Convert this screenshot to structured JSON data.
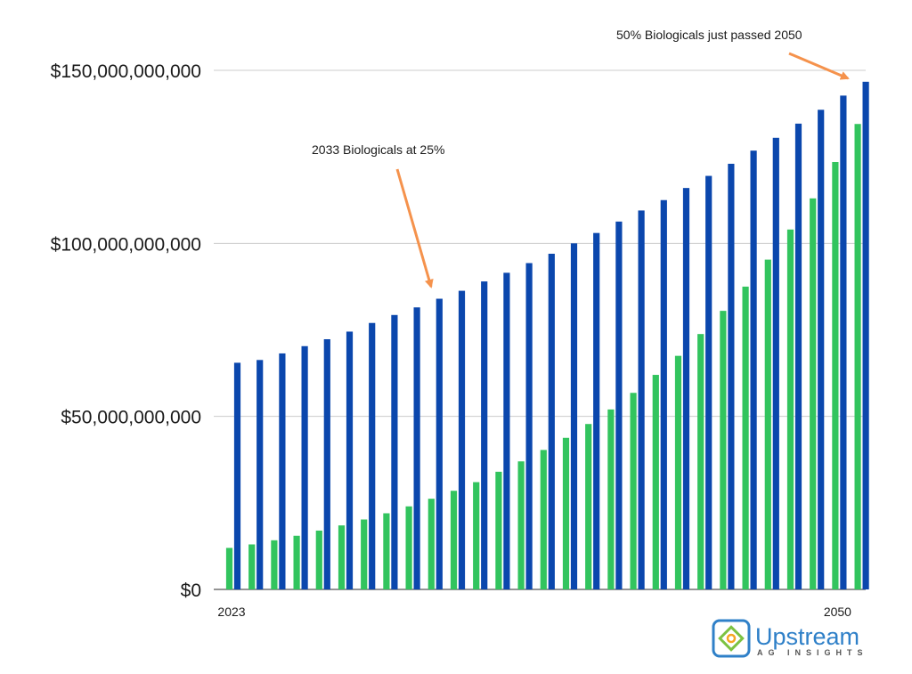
{
  "chart_data": {
    "type": "bar",
    "x_tick_labels": [
      {
        "index": 0,
        "label": "2023"
      },
      {
        "index": 27,
        "label": "2050"
      }
    ],
    "ylim": [
      0,
      150000000000
    ],
    "y_ticks": [
      {
        "value": 0,
        "label": "$0"
      },
      {
        "value": 50000000000,
        "label": "$50,000,000,000"
      },
      {
        "value": 100000000000,
        "label": "$100,000,000,000"
      },
      {
        "value": 150000000000,
        "label": "$150,000,000,000"
      }
    ],
    "grid": true,
    "series": [
      {
        "color": "#32c45e",
        "values": [
          12000000000,
          13000000000,
          14200000000,
          15500000000,
          17000000000,
          18500000000,
          20200000000,
          22000000000,
          24000000000,
          26200000000,
          28500000000,
          31000000000,
          34000000000,
          37000000000,
          40300000000,
          43800000000,
          47800000000,
          52000000000,
          56800000000,
          62000000000,
          67500000000,
          73800000000,
          80500000000,
          87500000000,
          95300000000,
          104000000000,
          113000000000,
          123500000000,
          134500000000
        ]
      },
      {
        "color": "#0b47ad",
        "values": [
          65500000000,
          66300000000,
          68200000000,
          70300000000,
          72300000000,
          74500000000,
          77000000000,
          79300000000,
          81500000000,
          84000000000,
          86300000000,
          89000000000,
          91500000000,
          94300000000,
          97000000000,
          100000000000,
          103000000000,
          106300000000,
          109500000000,
          112500000000,
          116000000000,
          119500000000,
          123000000000,
          126800000000,
          130500000000,
          134600000000,
          138600000000,
          142700000000,
          146700000000
        ]
      }
    ],
    "annotations": [
      {
        "text": "2033 Biologicals at 25%",
        "color": "#f5924c",
        "points_to_index": 9
      },
      {
        "text": "50% Biologicals just passed 2050",
        "color": "#f5924c",
        "points_to_index": 28
      }
    ]
  },
  "logo": {
    "word": "Upstream",
    "sub": "AG INSIGHTS",
    "color_primary": "#2f80c8",
    "color_accent": "#7cc242"
  }
}
